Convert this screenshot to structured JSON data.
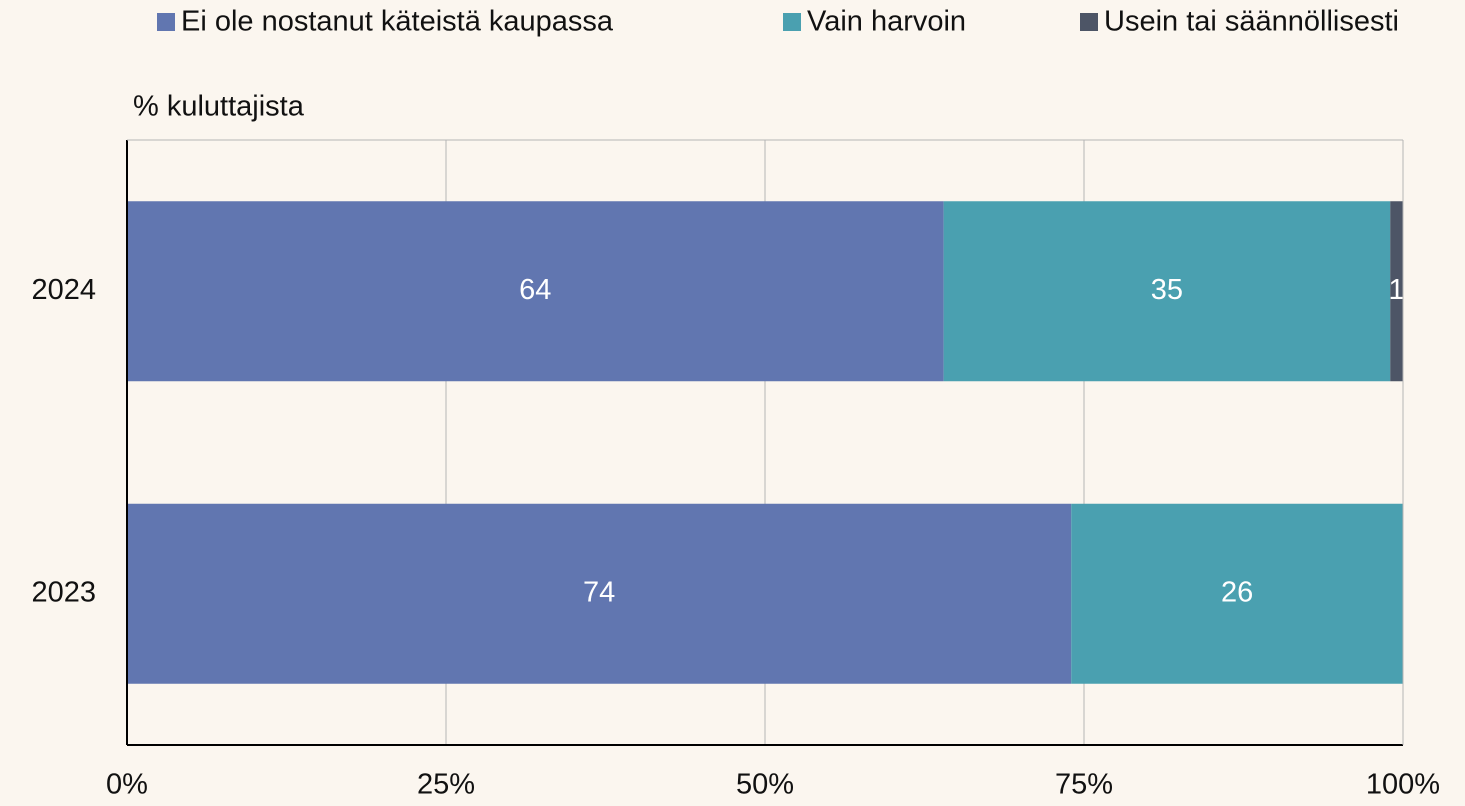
{
  "chart_data": {
    "type": "barh",
    "ylabel": "% kuluttajista",
    "categories": [
      "2024",
      "2023"
    ],
    "series": [
      {
        "name": "Ei ole nostanut käteistä kaupassa",
        "color": "#6176b0",
        "values": [
          64,
          74
        ]
      },
      {
        "name": "Vain harvoin",
        "color": "#4aa0b0",
        "values": [
          35,
          26
        ]
      },
      {
        "name": "Usein tai säännöllisesti",
        "color": "#4d5566",
        "values": [
          1,
          null
        ]
      }
    ],
    "xlim": [
      0,
      100
    ],
    "xticks": [
      {
        "value": 0,
        "label": "0%"
      },
      {
        "value": 25,
        "label": "25%"
      },
      {
        "value": 50,
        "label": "50%"
      },
      {
        "value": 75,
        "label": "75%"
      },
      {
        "value": 100,
        "label": "100%"
      }
    ],
    "grid": true,
    "legend": "top"
  }
}
